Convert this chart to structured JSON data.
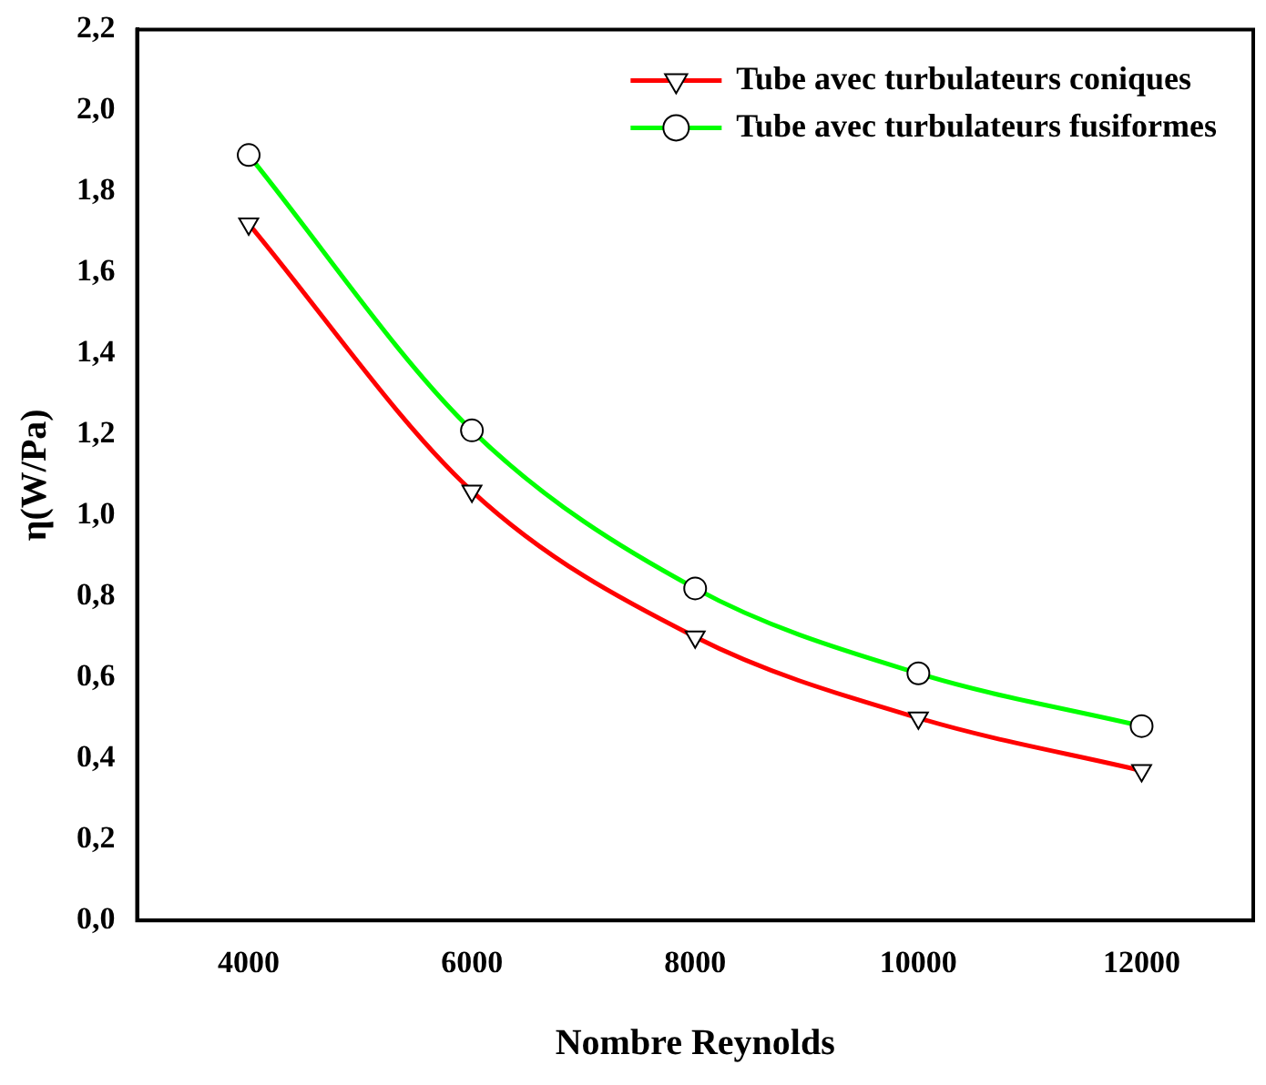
{
  "chart_data": {
    "type": "line",
    "xlabel": "Nombre Reynolds",
    "ylabel": "η(W/Pa)",
    "x": [
      4000,
      6000,
      8000,
      10000,
      12000
    ],
    "series": [
      {
        "name": "Tube avec turbulateurs coniques",
        "color": "#ff0000",
        "values": [
          1.72,
          1.06,
          0.7,
          0.5,
          0.37
        ],
        "marker": "triangle"
      },
      {
        "name": "Tube avec turbulateurs fusiformes",
        "color": "#00ff00",
        "values": [
          1.89,
          1.21,
          0.82,
          0.61,
          0.48
        ],
        "marker": "circle"
      }
    ],
    "xlim": [
      3000,
      13000
    ],
    "xticks": [
      4000,
      6000,
      8000,
      10000,
      12000
    ],
    "ylim": [
      0,
      2.2
    ],
    "yticks": [
      {
        "value": 0,
        "label": "0,0"
      },
      {
        "value": 0.2,
        "label": "0,2"
      },
      {
        "value": 0.4,
        "label": "0,4"
      },
      {
        "value": 0.6,
        "label": "0,6"
      },
      {
        "value": 0.8,
        "label": "0,8"
      },
      {
        "value": 1.0,
        "label": "1,0"
      },
      {
        "value": 1.2,
        "label": "1,2"
      },
      {
        "value": 1.4,
        "label": "1,4"
      },
      {
        "value": 1.6,
        "label": "1,6"
      },
      {
        "value": 1.8,
        "label": "1,8"
      },
      {
        "value": 2.0,
        "label": "2,0"
      },
      {
        "value": 2.2,
        "label": "2,2"
      }
    ],
    "grid": false,
    "legend": "top right",
    "line_style": "solid"
  }
}
